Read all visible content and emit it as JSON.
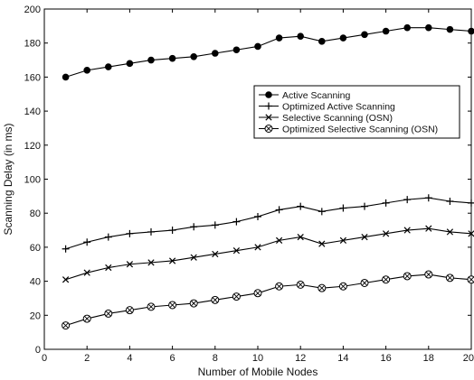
{
  "chart_data": {
    "type": "line",
    "title": "",
    "xlabel": "Number of Mobile Nodes",
    "ylabel": "Scanning Delay (in ms)",
    "xlim": [
      0,
      20
    ],
    "ylim": [
      0,
      200
    ],
    "xticks": [
      0,
      2,
      4,
      6,
      8,
      10,
      12,
      14,
      16,
      18,
      20
    ],
    "yticks": [
      0,
      20,
      40,
      60,
      80,
      100,
      120,
      140,
      160,
      180,
      200
    ],
    "grid": false,
    "legend_position": "center-right",
    "x": [
      1,
      2,
      3,
      4,
      5,
      6,
      7,
      8,
      9,
      10,
      11,
      12,
      13,
      14,
      15,
      16,
      17,
      18,
      19,
      20
    ],
    "series": [
      {
        "name": "Active Scanning",
        "marker": "filled-circle",
        "values": [
          160,
          164,
          166,
          168,
          170,
          171,
          172,
          174,
          176,
          178,
          183,
          184,
          181,
          183,
          185,
          187,
          189,
          189,
          188,
          187
        ]
      },
      {
        "name": "Optimized Active Scanning",
        "marker": "plus",
        "values": [
          59,
          63,
          66,
          68,
          69,
          70,
          72,
          73,
          75,
          78,
          82,
          84,
          81,
          83,
          84,
          86,
          88,
          89,
          87,
          86
        ]
      },
      {
        "name": "Selective Scanning (OSN)",
        "marker": "x",
        "values": [
          41,
          45,
          48,
          50,
          51,
          52,
          54,
          56,
          58,
          60,
          64,
          66,
          62,
          64,
          66,
          68,
          70,
          71,
          69,
          68
        ]
      },
      {
        "name": "Optimized Selective Scanning (OSN)",
        "marker": "circle-x",
        "values": [
          14,
          18,
          21,
          23,
          25,
          26,
          27,
          29,
          31,
          33,
          37,
          38,
          36,
          37,
          39,
          41,
          43,
          44,
          42,
          41
        ]
      }
    ]
  }
}
